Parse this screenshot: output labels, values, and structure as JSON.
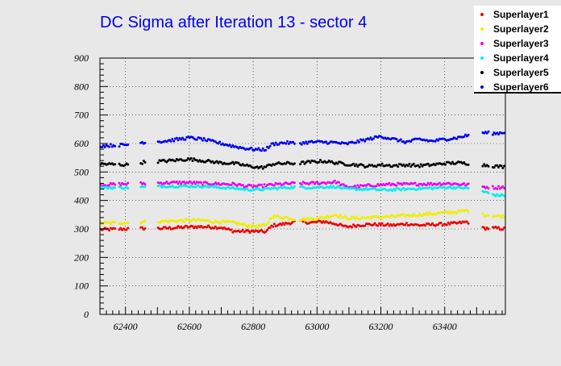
{
  "chart_data": {
    "type": "scatter",
    "title": "DC Sigma after Iteration 13 - sector 4",
    "xlabel": "",
    "ylabel": "",
    "xlim": [
      62320,
      63590
    ],
    "ylim": [
      0,
      900
    ],
    "xticks": [
      62400,
      62600,
      62800,
      63000,
      63200,
      63400
    ],
    "yticks": [
      0,
      100,
      200,
      300,
      400,
      500,
      600,
      700,
      800,
      900
    ],
    "grid": true,
    "legend_position": "top-right",
    "gaps": [
      [
        62370,
        62380
      ],
      [
        62410,
        62445
      ],
      [
        62465,
        62500
      ],
      [
        62930,
        62945
      ],
      [
        63475,
        63515
      ],
      [
        63540,
        63548
      ]
    ],
    "series": [
      {
        "name": "Superlayer1",
        "color": "#ee0000",
        "x": [
          62330,
          62400,
          62460,
          62520,
          62600,
          62640,
          62700,
          62740,
          62780,
          62820,
          62840,
          62860,
          62900,
          62940,
          62980,
          63020,
          63060,
          63090,
          63120,
          63160,
          63200,
          63240,
          63280,
          63320,
          63360,
          63400,
          63440,
          63470,
          63520,
          63560,
          63590
        ],
        "y": [
          298,
          300,
          302,
          302,
          307,
          308,
          305,
          292,
          292,
          291,
          290,
          312,
          318,
          327,
          322,
          326,
          318,
          307,
          312,
          316,
          315,
          313,
          318,
          313,
          315,
          317,
          320,
          325,
          302,
          303,
          300
        ],
        "jitter": 5
      },
      {
        "name": "Superlayer2",
        "color": "#eeee00",
        "x": [
          62330,
          62400,
          62460,
          62520,
          62600,
          62640,
          62700,
          62740,
          62780,
          62820,
          62840,
          62860,
          62900,
          62940,
          62980,
          63020,
          63060,
          63090,
          63120,
          63160,
          63200,
          63240,
          63280,
          63320,
          63360,
          63400,
          63440,
          63470,
          63520,
          63560,
          63590
        ],
        "y": [
          320,
          322,
          325,
          327,
          330,
          330,
          324,
          322,
          312,
          310,
          312,
          345,
          340,
          333,
          335,
          340,
          350,
          338,
          338,
          340,
          342,
          344,
          347,
          350,
          353,
          357,
          360,
          365,
          350,
          345,
          345
        ],
        "jitter": 5
      },
      {
        "name": "Superlayer3",
        "color": "#ee00ee",
        "x": [
          62330,
          62400,
          62460,
          62520,
          62600,
          62640,
          62700,
          62740,
          62780,
          62820,
          62840,
          62860,
          62900,
          62940,
          62980,
          63020,
          63060,
          63090,
          63120,
          63160,
          63200,
          63240,
          63280,
          63320,
          63360,
          63400,
          63440,
          63470,
          63520,
          63560,
          63590
        ],
        "y": [
          455,
          458,
          460,
          462,
          463,
          460,
          458,
          457,
          450,
          450,
          452,
          455,
          458,
          460,
          460,
          462,
          465,
          448,
          448,
          452,
          455,
          457,
          456,
          458,
          458,
          460,
          458,
          455,
          448,
          445,
          448
        ],
        "jitter": 5
      },
      {
        "name": "Superlayer4",
        "color": "#00eeee",
        "x": [
          62330,
          62400,
          62460,
          62520,
          62600,
          62640,
          62700,
          62740,
          62780,
          62820,
          62840,
          62860,
          62900,
          62940,
          62980,
          63020,
          63060,
          63090,
          63120,
          63160,
          63200,
          63240,
          63280,
          63320,
          63360,
          63400,
          63440,
          63470,
          63520,
          63560,
          63590
        ],
        "y": [
          445,
          445,
          447,
          450,
          450,
          450,
          445,
          443,
          438,
          438,
          440,
          442,
          445,
          447,
          445,
          447,
          448,
          440,
          440,
          440,
          437,
          438,
          440,
          442,
          443,
          446,
          445,
          443,
          432,
          418,
          418
        ],
        "jitter": 4
      },
      {
        "name": "Superlayer5",
        "color": "#000000",
        "x": [
          62330,
          62400,
          62460,
          62520,
          62600,
          62640,
          62700,
          62740,
          62780,
          62820,
          62840,
          62860,
          62900,
          62940,
          62980,
          63020,
          63060,
          63090,
          63120,
          63160,
          63200,
          63240,
          63280,
          63320,
          63360,
          63400,
          63440,
          63470,
          63520,
          63560,
          63590
        ],
        "y": [
          528,
          525,
          535,
          538,
          545,
          540,
          532,
          530,
          522,
          515,
          518,
          528,
          530,
          530,
          535,
          538,
          532,
          528,
          525,
          520,
          525,
          522,
          525,
          522,
          525,
          530,
          532,
          530,
          525,
          520,
          518
        ],
        "jitter": 5
      },
      {
        "name": "Superlayer6",
        "color": "#0000ee",
        "x": [
          62330,
          62400,
          62460,
          62520,
          62600,
          62640,
          62700,
          62740,
          62780,
          62820,
          62840,
          62860,
          62900,
          62940,
          62980,
          63020,
          63060,
          63090,
          63120,
          63160,
          63200,
          63240,
          63280,
          63320,
          63360,
          63400,
          63440,
          63470,
          63520,
          63560,
          63590
        ],
        "y": [
          592,
          595,
          605,
          608,
          620,
          615,
          600,
          590,
          582,
          578,
          580,
          598,
          603,
          600,
          605,
          605,
          603,
          598,
          605,
          615,
          625,
          615,
          605,
          615,
          608,
          615,
          620,
          628,
          638,
          635,
          640
        ],
        "jitter": 5
      }
    ]
  }
}
